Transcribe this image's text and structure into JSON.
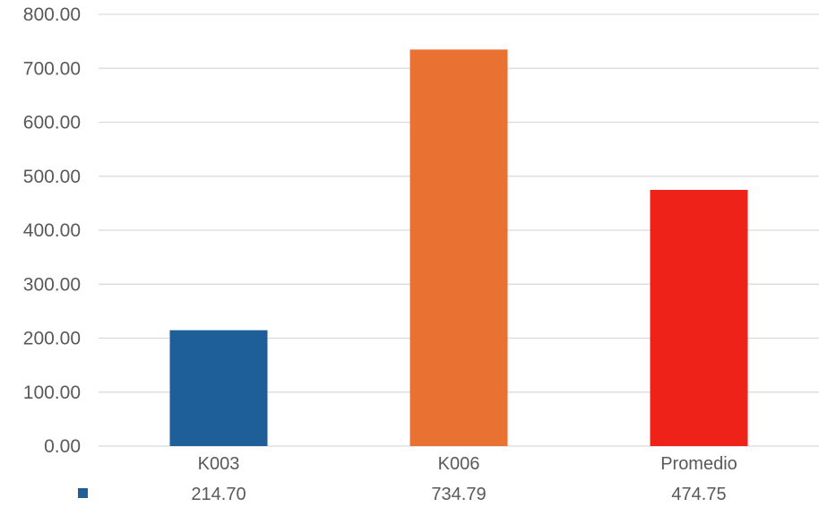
{
  "chart_data": {
    "type": "bar",
    "categories": [
      "K003",
      "K006",
      "Promedio"
    ],
    "series": [
      {
        "values": [
          214.7,
          734.79,
          474.75
        ],
        "value_labels": [
          "214.70",
          "734.79",
          "474.75"
        ]
      }
    ],
    "bar_colors": [
      "#1f5f99",
      "#e97132",
      "#ee2218"
    ],
    "legend_key_color": "#1f5f99",
    "ylim": [
      0,
      800
    ],
    "yticks": [
      0,
      100,
      200,
      300,
      400,
      500,
      600,
      700,
      800
    ],
    "ytick_labels": [
      "0.00",
      "100.00",
      "200.00",
      "300.00",
      "400.00",
      "500.00",
      "600.00",
      "700.00",
      "800.00"
    ],
    "grid": true,
    "data_table": true,
    "gridline_color": "#d9d9d9",
    "text_color": "#595959"
  }
}
